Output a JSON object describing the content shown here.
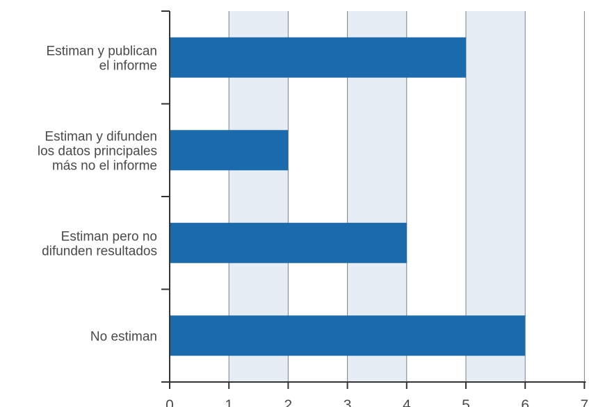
{
  "chart_data": {
    "type": "bar",
    "orientation": "horizontal",
    "categories": [
      [
        "Estiman y publican",
        "el informe"
      ],
      [
        "Estiman y difunden",
        "los datos principales",
        "más no el informe"
      ],
      [
        "Estiman pero no",
        "difunden resultados"
      ],
      [
        "No estiman"
      ]
    ],
    "values": [
      5,
      2,
      4,
      6
    ],
    "xlim": [
      0,
      7
    ],
    "x_ticks": [
      "0",
      "1",
      "2",
      "3",
      "4",
      "5",
      "6",
      "7"
    ],
    "grid": "alternating vertical bands",
    "title": "",
    "xlabel": "",
    "ylabel": "",
    "colors": {
      "bar": "#1b6aab",
      "band": "#e6edf5",
      "grid_line": "#7a8088",
      "axis": "#333333",
      "text": "#4a4a4a"
    }
  }
}
